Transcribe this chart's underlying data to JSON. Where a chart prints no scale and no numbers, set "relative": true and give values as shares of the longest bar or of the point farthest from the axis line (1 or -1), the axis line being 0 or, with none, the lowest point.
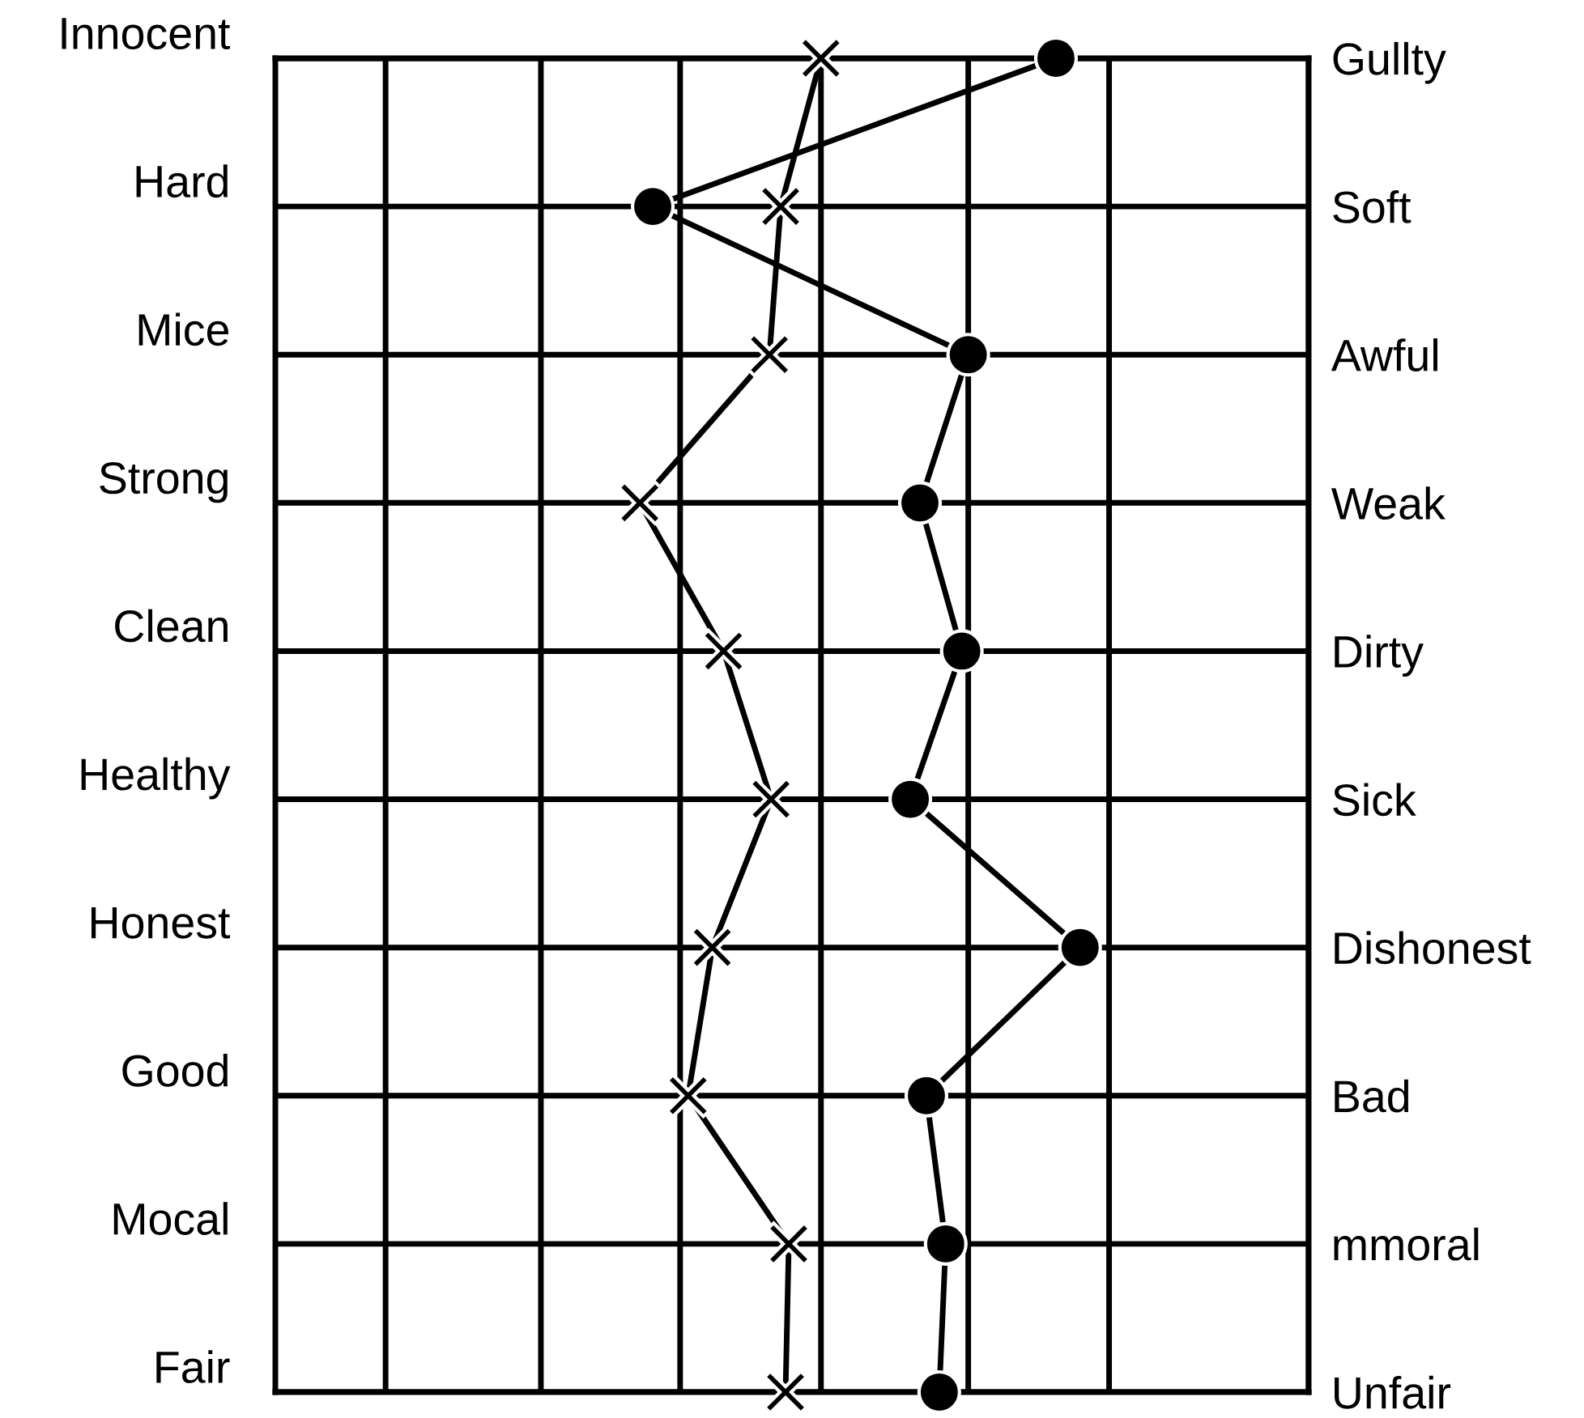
{
  "chart_data": {
    "type": "line",
    "orientation": "horizontal",
    "relative": true,
    "categories": [
      "Innocent",
      "Hard",
      "Mice",
      "Strong",
      "Clean",
      "Healthy",
      "Honest",
      "Good",
      "Mocal",
      "Fair"
    ],
    "y2_categories": [
      "Gullty",
      "Soft",
      "Awful",
      "Weak",
      "Dirty",
      "Sick",
      "Dishonest",
      "Bad",
      "mmoral",
      "Unfair"
    ],
    "series": [
      {
        "color": "#000000",
        "marker": "cross",
        "values": [
          0.678,
          0.628,
          0.614,
          0.453,
          0.557,
          0.616,
          0.543,
          0.513,
          0.638,
          0.634
        ]
      },
      {
        "color": "#000000",
        "marker": "circle",
        "values": [
          0.97,
          0.469,
          0.861,
          0.801,
          0.853,
          0.789,
          1.0,
          0.809,
          0.833,
          0.825
        ]
      }
    ],
    "ref_lines": [
      {
        "axis": "x",
        "value": 0.137,
        "color": "#000000"
      },
      {
        "axis": "x",
        "value": 0.33,
        "color": "#000000"
      },
      {
        "axis": "x",
        "value": 0.503,
        "color": "#000000"
      },
      {
        "axis": "x",
        "value": 0.678,
        "color": "#000000"
      },
      {
        "axis": "x",
        "value": 0.861,
        "color": "#000000"
      },
      {
        "axis": "x",
        "value": 1.036,
        "color": "#000000"
      },
      {
        "axis": "x",
        "value": 1.284,
        "color": "#000000"
      }
    ],
    "grid": "y",
    "line_style": "solid",
    "legend": false
  }
}
